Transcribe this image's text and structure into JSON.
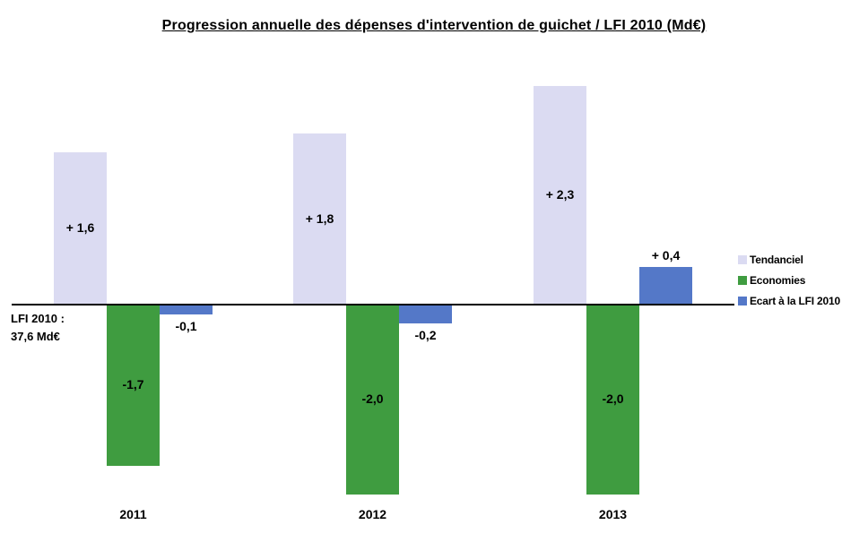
{
  "title": "Progression annuelle des dépenses d'intervention de guichet / LFI 2010 (Md€)",
  "annotation": {
    "line1": "LFI 2010 :",
    "line2": "37,6 Md€"
  },
  "chart_data": {
    "type": "bar",
    "title": "Progression annuelle des dépenses d'intervention de guichet / LFI 2010 (Md€)",
    "categories": [
      "2011",
      "2012",
      "2013"
    ],
    "series": [
      {
        "name": "Tendanciel",
        "color": "#dbdbf2",
        "values": [
          1.6,
          1.8,
          2.3
        ],
        "labels": [
          "+ 1,6",
          "+ 1,8",
          "+ 2,3"
        ]
      },
      {
        "name": "Economies",
        "color": "#3f9c40",
        "values": [
          -1.7,
          -2.0,
          -2.0
        ],
        "labels": [
          "-1,7",
          "-2,0",
          "-2,0"
        ]
      },
      {
        "name": "Ecart à la LFI 2010",
        "color": "#5478c8",
        "values": [
          -0.1,
          -0.2,
          0.4
        ],
        "labels": [
          "-0,1",
          "-0,2",
          "+ 0,4"
        ]
      }
    ],
    "baseline_annotation": "LFI 2010 : 37,6 Md€",
    "unit": "Md€",
    "xlabel": "",
    "ylabel": "",
    "ylim": [
      -2.5,
      2.5
    ],
    "grid": false,
    "y_axis_visible": false,
    "legend_position": "right"
  }
}
